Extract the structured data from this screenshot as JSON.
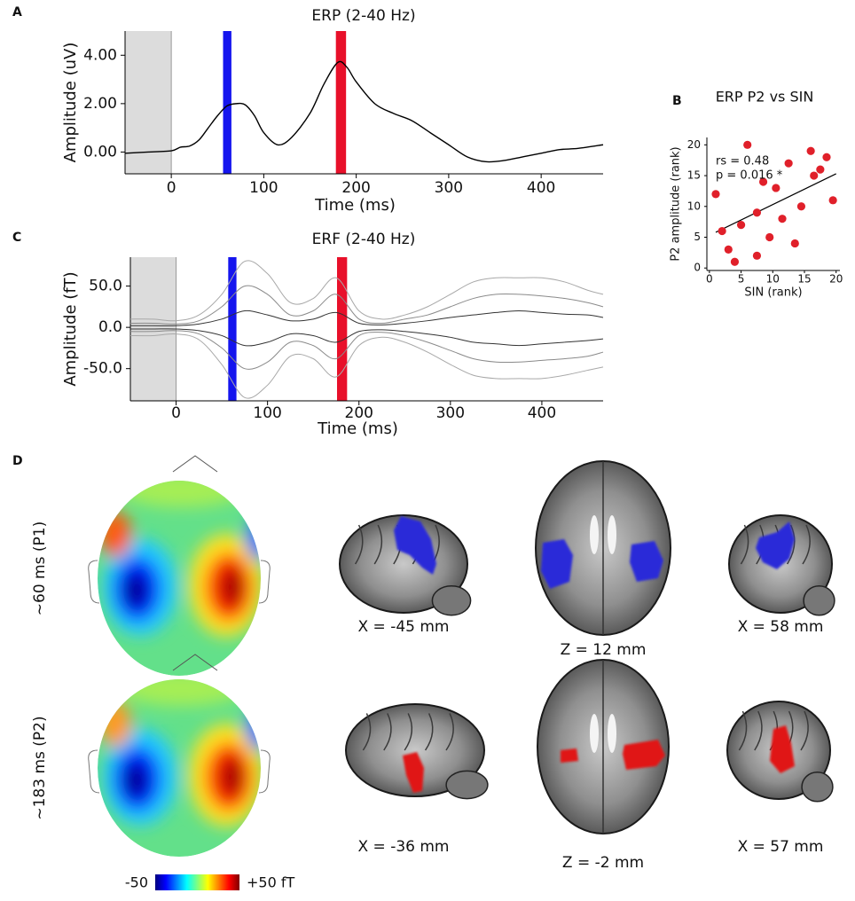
{
  "panel_labels": [
    "A",
    "B",
    "C",
    "D"
  ],
  "chart_data": [
    {
      "type": "line",
      "title": "ERP (2-40 Hz)",
      "xlabel": "Time (ms)",
      "ylabel": "Amplitude (uV)",
      "xlim": [
        -50,
        467
      ],
      "ylim": [
        -0.9,
        5.0
      ],
      "xticks": [
        0,
        100,
        200,
        300,
        400
      ],
      "yticks": [
        {
          "value": 0,
          "label": "0.00"
        },
        {
          "value": 2,
          "label": "2.00"
        },
        {
          "value": 4,
          "label": "4.00"
        }
      ],
      "baseline": {
        "x": [
          -50,
          0
        ],
        "color": "#dcdcdc"
      },
      "highlights": [
        {
          "x": [
            56,
            65
          ],
          "color": "#1515ee"
        },
        {
          "x": [
            178,
            189
          ],
          "color": "#e8102a"
        }
      ],
      "x": [
        -50,
        -25,
        0,
        10,
        20,
        30,
        40,
        50,
        60,
        70,
        80,
        90,
        100,
        115,
        130,
        150,
        165,
        180,
        190,
        200,
        220,
        240,
        260,
        280,
        300,
        320,
        340,
        360,
        380,
        400,
        420,
        440,
        467
      ],
      "series": [
        {
          "color": "#000000",
          "values": [
            -0.05,
            0.0,
            0.05,
            0.2,
            0.25,
            0.5,
            1.0,
            1.5,
            1.9,
            2.0,
            1.95,
            1.5,
            0.8,
            0.3,
            0.6,
            1.6,
            2.8,
            3.7,
            3.5,
            2.9,
            2.0,
            1.6,
            1.3,
            0.8,
            0.3,
            -0.2,
            -0.4,
            -0.35,
            -0.2,
            -0.05,
            0.1,
            0.15,
            0.3
          ]
        }
      ]
    },
    {
      "type": "scatter",
      "title": "ERP P2 vs SIN",
      "xlabel": "SIN (rank)",
      "ylabel": "P2 amplitude  (rank)",
      "xlim": [
        -0.4,
        20.6
      ],
      "ylim": [
        -0.4,
        21.2
      ],
      "xticks": [
        0,
        5,
        10,
        15,
        20
      ],
      "yticks": [
        0,
        5,
        10,
        15,
        20
      ],
      "annotations": [
        "rs = 0.48",
        "p = 0.016 *"
      ],
      "color": "#e0202a",
      "x": [
        1,
        2,
        3,
        4,
        5,
        6,
        7.5,
        7.5,
        8.5,
        9.5,
        10.5,
        11.5,
        12.5,
        13.5,
        14.5,
        16,
        16.5,
        17.5,
        18.5,
        19.5
      ],
      "values": [
        12,
        6,
        3,
        1,
        7,
        20,
        9,
        2,
        14,
        5,
        13,
        8,
        17,
        4,
        10,
        19,
        15,
        16,
        18,
        11
      ],
      "trend": {
        "x": [
          1,
          20
        ],
        "values": [
          5.8,
          15.3
        ],
        "color": "#000000"
      }
    },
    {
      "type": "line",
      "title": "ERF (2-40 Hz)",
      "xlabel": "Time (ms)",
      "ylabel": "Amplitude (fT)",
      "xlim": [
        -50,
        467
      ],
      "ylim": [
        -89,
        85
      ],
      "xticks": [
        0,
        100,
        200,
        300,
        400
      ],
      "yticks": [
        {
          "value": -50,
          "label": "-50.0"
        },
        {
          "value": 0,
          "label": "0.0"
        },
        {
          "value": 50,
          "label": "50.0"
        }
      ],
      "baseline": {
        "x": [
          -50,
          0
        ],
        "color": "#dcdcdc"
      },
      "highlights": [
        {
          "x": [
            57,
            66
          ],
          "color": "#1515ee"
        },
        {
          "x": [
            176,
            187
          ],
          "color": "#e8102a"
        }
      ],
      "x": [
        -50,
        -25,
        0,
        25,
        50,
        75,
        100,
        125,
        150,
        175,
        200,
        225,
        250,
        275,
        300,
        325,
        350,
        375,
        400,
        425,
        450,
        467
      ],
      "series": [
        {
          "color": "#a8a8a8",
          "values": [
            10,
            10,
            8,
            15,
            40,
            80,
            65,
            30,
            35,
            60,
            20,
            10,
            15,
            25,
            40,
            55,
            60,
            60,
            60,
            55,
            45,
            40
          ]
        },
        {
          "color": "#8a8a8a",
          "values": [
            5,
            5,
            4,
            8,
            25,
            50,
            40,
            15,
            20,
            40,
            10,
            5,
            10,
            15,
            25,
            35,
            40,
            40,
            38,
            35,
            30,
            25
          ]
        },
        {
          "color": "#333333",
          "values": [
            2,
            2,
            2,
            4,
            10,
            20,
            15,
            8,
            10,
            18,
            5,
            3,
            5,
            8,
            12,
            15,
            18,
            20,
            18,
            16,
            15,
            12
          ]
        },
        {
          "color": "#333333",
          "values": [
            -2,
            -2,
            -2,
            -4,
            -10,
            -22,
            -18,
            -8,
            -10,
            -18,
            -5,
            -3,
            -5,
            -8,
            -12,
            -18,
            -20,
            -22,
            -20,
            -18,
            -16,
            -14
          ]
        },
        {
          "color": "#8a8a8a",
          "values": [
            -5,
            -5,
            -4,
            -8,
            -25,
            -50,
            -42,
            -18,
            -22,
            -38,
            -10,
            -6,
            -10,
            -18,
            -28,
            -38,
            -42,
            -42,
            -40,
            -38,
            -35,
            -30
          ]
        },
        {
          "color": "#a8a8a8",
          "values": [
            -10,
            -10,
            -8,
            -15,
            -45,
            -85,
            -70,
            -35,
            -38,
            -60,
            -22,
            -12,
            -18,
            -30,
            -45,
            -58,
            -62,
            -62,
            -62,
            -58,
            -52,
            -48
          ]
        }
      ]
    }
  ],
  "panel_d": {
    "row_labels": [
      "~60 ms (P1)",
      "~183 ms (P2)"
    ],
    "slice_labels": [
      [
        "X = -45 mm",
        "Z = 12 mm",
        "X = 58 mm"
      ],
      [
        "X = -36 mm",
        "Z = -2 mm",
        "X = 57 mm"
      ]
    ],
    "colorbar": {
      "min_label": "-50",
      "max_label": "+50 fT"
    }
  }
}
